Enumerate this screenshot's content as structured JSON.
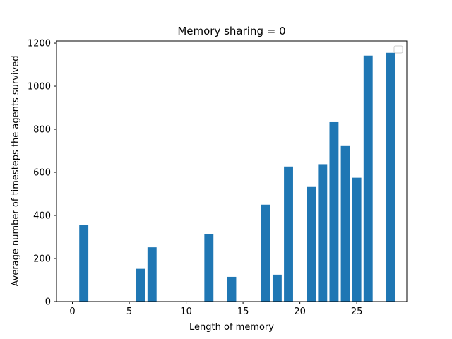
{
  "chart_data": {
    "type": "bar",
    "title": "Memory sharing = 0",
    "xlabel": "Length of memory",
    "ylabel": "Average number of timesteps the agents survived",
    "x": [
      1,
      6,
      7,
      12,
      14,
      17,
      18,
      19,
      21,
      22,
      23,
      24,
      25,
      26,
      28
    ],
    "values": [
      355,
      152,
      252,
      312,
      115,
      450,
      125,
      627,
      532,
      638,
      833,
      722,
      575,
      1142,
      1155
    ],
    "xlim": [
      -1.4,
      29.4
    ],
    "ylim": [
      0,
      1210
    ],
    "xticks": [
      0,
      5,
      10,
      15,
      20,
      25
    ],
    "yticks": [
      0,
      200,
      400,
      600,
      800,
      1000,
      1200
    ],
    "bar_width": 0.8,
    "bar_color": "#1f77b4",
    "legend": "empty legend box, upper-right",
    "grid": false
  }
}
